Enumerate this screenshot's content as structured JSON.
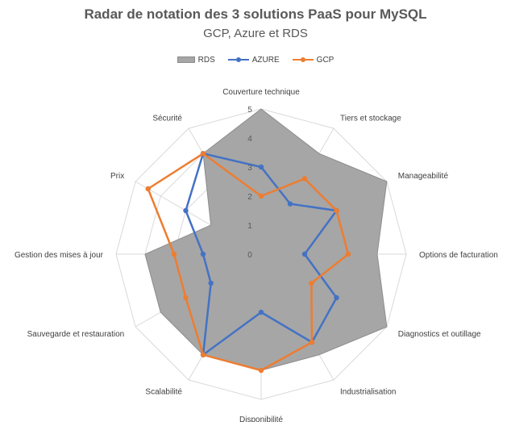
{
  "chart_data": {
    "type": "radar",
    "title": "Radar de notation des 3 solutions PaaS pour MySQL",
    "subtitle": "GCP, Azure et RDS",
    "categories": [
      "Couverture technique",
      "Tiers et stockage",
      "Manageabilité",
      "Options de facturation",
      "Diagnostics et outillage",
      "Industrialisation",
      "Disponibilité",
      "Scalabilité",
      "Sauvegarde et restauration",
      "Gestion des mises à jour",
      "Prix",
      "Sécurité"
    ],
    "rlim": [
      0,
      5
    ],
    "ticks": [
      "0",
      "1",
      "2",
      "3",
      "4",
      "5"
    ],
    "legend_position": "top",
    "series": [
      {
        "name": "RDS",
        "style": "filled",
        "color": "#a6a6a6",
        "values": [
          5,
          4,
          5,
          4,
          5,
          4,
          4,
          4,
          4,
          4,
          2,
          4
        ]
      },
      {
        "name": "AZURE",
        "style": "line",
        "color": "#4472c4",
        "values": [
          3,
          2,
          3,
          1.5,
          3,
          3.5,
          2,
          4,
          2,
          2,
          3,
          4
        ]
      },
      {
        "name": "GCP",
        "style": "line",
        "color": "#ed7d31",
        "values": [
          2,
          3,
          3,
          3,
          2,
          3.5,
          4,
          4,
          3,
          3,
          4.5,
          4
        ]
      }
    ]
  }
}
